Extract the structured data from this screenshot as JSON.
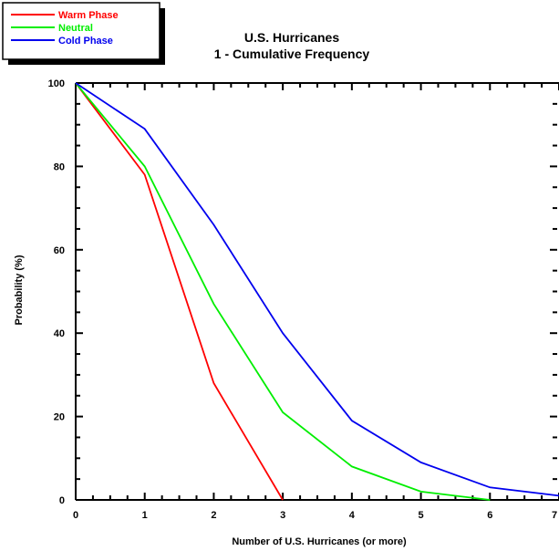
{
  "chart_data": {
    "type": "line",
    "title": [
      "U.S. Hurricanes",
      "1 - Cumulative Frequency"
    ],
    "xlabel": "Number of U.S. Hurricanes (or more)",
    "ylabel": "Probability (%)",
    "xlim": [
      0,
      7
    ],
    "ylim": [
      0,
      100
    ],
    "x": [
      0,
      1,
      2,
      3,
      4,
      5,
      6,
      7
    ],
    "x_tick_labels": [
      "0",
      "1",
      "2",
      "3",
      "4",
      "5",
      "6",
      "7"
    ],
    "y_tick_labels": [
      "0",
      "20",
      "40",
      "60",
      "80",
      "100"
    ],
    "y_ticks": [
      0,
      20,
      40,
      60,
      80,
      100
    ],
    "grid": false,
    "legend_position": "top-left",
    "series": [
      {
        "name": "Warm Phase",
        "color": "#ff0000",
        "points": [
          [
            0,
            100
          ],
          [
            1,
            78
          ],
          [
            2,
            28
          ],
          [
            3,
            0
          ]
        ]
      },
      {
        "name": "Neutral",
        "color": "#00ee00",
        "points": [
          [
            0,
            100
          ],
          [
            1,
            80
          ],
          [
            2,
            47
          ],
          [
            3,
            21
          ],
          [
            4,
            8
          ],
          [
            5,
            2
          ],
          [
            6,
            0
          ]
        ]
      },
      {
        "name": "Cold Phase",
        "color": "#0000ee",
        "points": [
          [
            0,
            100
          ],
          [
            1,
            89
          ],
          [
            2,
            66
          ],
          [
            3,
            40
          ],
          [
            4,
            19
          ],
          [
            5,
            9
          ],
          [
            6,
            3
          ],
          [
            7,
            1
          ]
        ]
      }
    ]
  }
}
